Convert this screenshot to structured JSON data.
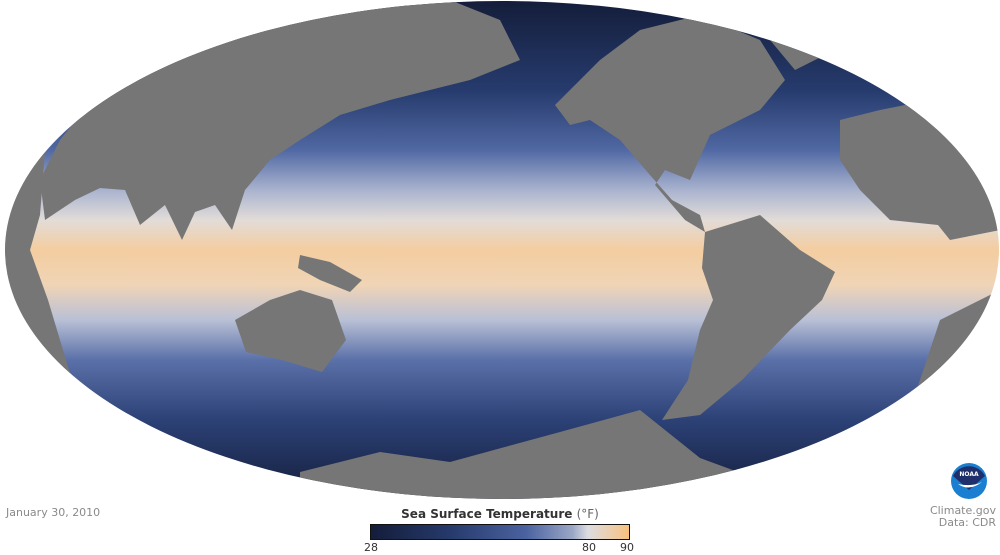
{
  "date": "January 30, 2010",
  "legend": {
    "title": "Sea Surface Temperature",
    "unit": "(°F)",
    "min": 28,
    "max": 90,
    "ticks": [
      "28",
      "80",
      "90"
    ],
    "colors": [
      "#141d3a",
      "#25396a",
      "#4a62a0",
      "#9aa6c6",
      "#dcdde2",
      "#f9c27e"
    ]
  },
  "credit": {
    "site": "Climate.gov",
    "source": "Data: CDR"
  },
  "logo": {
    "text": "NOAA"
  },
  "map": {
    "projection": "Mollweide",
    "land_color": "#767676"
  }
}
